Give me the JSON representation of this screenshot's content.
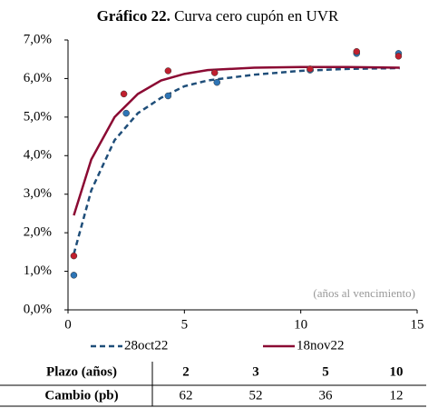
{
  "chart_data": {
    "type": "line",
    "title_bold": "Gráfico 22.",
    "title": " Curva cero cupón en UVR",
    "annotation": "(años al vencimiento)",
    "xlim": [
      0,
      15
    ],
    "xticks": [
      0,
      5,
      10,
      15
    ],
    "ylim": [
      0,
      7
    ],
    "yticks": [
      {
        "value": 0,
        "label": "0,0%"
      },
      {
        "value": 1,
        "label": "1,0%"
      },
      {
        "value": 2,
        "label": "2,0%"
      },
      {
        "value": 3,
        "label": "3,0%"
      },
      {
        "value": 4,
        "label": "4,0%"
      },
      {
        "value": 5,
        "label": "5,0%"
      },
      {
        "value": 6,
        "label": "6,0%"
      },
      {
        "value": 7,
        "label": "7,0%"
      }
    ],
    "series": [
      {
        "name": "28oct22",
        "color": "#1f4e79",
        "point_color": "#2e75b6",
        "dashed": true,
        "x": [
          0.25,
          1,
          2,
          3,
          4,
          5,
          6,
          8,
          10,
          12,
          14.25
        ],
        "values": [
          1.45,
          3.1,
          4.4,
          5.1,
          5.5,
          5.8,
          5.95,
          6.1,
          6.2,
          6.25,
          6.27
        ],
        "points_x": [
          0.25,
          2.5,
          4.3,
          6.4,
          10.4,
          12.4,
          14.2
        ],
        "points_y": [
          0.9,
          5.1,
          5.55,
          5.9,
          6.22,
          6.65,
          6.65
        ]
      },
      {
        "name": "18nov22",
        "color": "#8b0a33",
        "point_color": "#c0202f",
        "dashed": false,
        "x": [
          0.25,
          1,
          2,
          3,
          4,
          5,
          6,
          8,
          10,
          12,
          14.25
        ],
        "values": [
          2.45,
          3.9,
          5.0,
          5.6,
          5.95,
          6.12,
          6.22,
          6.28,
          6.3,
          6.3,
          6.28
        ],
        "points_x": [
          0.25,
          2.4,
          4.3,
          6.3,
          10.4,
          12.4,
          14.2
        ],
        "points_y": [
          1.4,
          5.6,
          6.2,
          6.15,
          6.25,
          6.7,
          6.58
        ]
      }
    ]
  },
  "table": {
    "header": [
      "Plazo (años)",
      "2",
      "3",
      "5",
      "10"
    ],
    "rows": [
      [
        "Cambio (pb)",
        "62",
        "52",
        "36",
        "12"
      ]
    ]
  }
}
